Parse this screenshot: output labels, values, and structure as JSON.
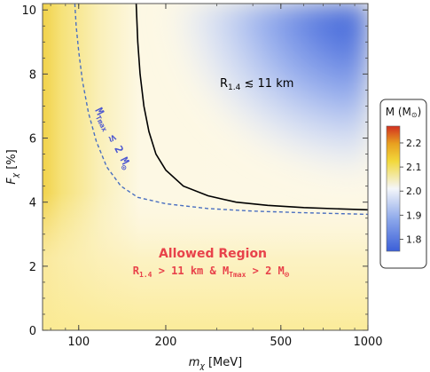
{
  "chart_data": {
    "type": "heatmap",
    "xscale": "log",
    "xlim": [
      75,
      1000
    ],
    "ylim": [
      0,
      10.2
    ],
    "xticks": [
      100,
      200,
      500,
      1000
    ],
    "yticks": [
      0,
      2,
      4,
      6,
      8,
      10
    ],
    "xlabel_main": "m",
    "xlabel_sub": "χ",
    "xlabel_unit": "[MeV]",
    "ylabel_main": "F",
    "ylabel_sub": "χ",
    "ylabel_unit": "[%]",
    "colorbar": {
      "title": "M (M",
      "title_sym": "⊙",
      "title_close": ")",
      "ticks": [
        1.8,
        1.9,
        2.0,
        2.1,
        2.2
      ],
      "colors": [
        "#3b5fd8",
        "#8aa6ea",
        "#f4f6fa",
        "#f2d83a",
        "#e8a020",
        "#d22f20"
      ]
    },
    "curves": [
      {
        "label_r": "R",
        "label_r_sub": "1.4",
        "label_rest": " ≲ 11 km",
        "style": "solid",
        "color": "#000000",
        "x": [
          158,
          160,
          163,
          168,
          175,
          185,
          200,
          230,
          280,
          350,
          450,
          600,
          800,
          1000
        ],
        "y": [
          10.2,
          9.0,
          8.0,
          7.0,
          6.2,
          5.5,
          5.0,
          4.5,
          4.2,
          4.0,
          3.9,
          3.83,
          3.79,
          3.76
        ]
      },
      {
        "label_m": "M",
        "label_m_sub": "Tmax",
        "label_rest": " ≲ 2 M",
        "label_sym": "⊙",
        "style": "dashed",
        "color": "#4a6fc0",
        "x": [
          97,
          98,
          100,
          103,
          108,
          115,
          125,
          140,
          160,
          200,
          280,
          400,
          600,
          1000
        ],
        "y": [
          10.2,
          9.5,
          8.7,
          7.8,
          6.8,
          5.9,
          5.1,
          4.5,
          4.15,
          3.95,
          3.8,
          3.72,
          3.67,
          3.62
        ]
      }
    ],
    "annotation_title": "Allowed Region",
    "annotation_line": {
      "r": "R",
      "r_sub": "1.4",
      "middle": " > 11 km & M",
      "m_sub": "Tmax",
      "end": " > 2 M",
      "sym": "⊙"
    },
    "annotation_color": "#e8424a"
  }
}
